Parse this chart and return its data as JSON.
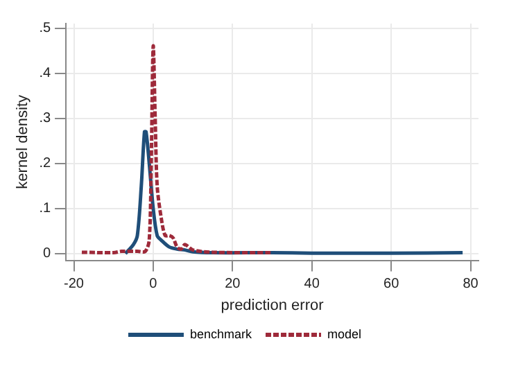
{
  "chart_data": {
    "type": "line",
    "xlabel": "prediction error",
    "ylabel": "kernel density",
    "xlim": [
      -22,
      82
    ],
    "xticks": [
      -20,
      0,
      20,
      40,
      60,
      80
    ],
    "ylim": [
      -0.015,
      0.51
    ],
    "yticks": [
      {
        "value": 0,
        "label": "0"
      },
      {
        "value": 0.1,
        "label": ".1"
      },
      {
        "value": 0.2,
        "label": ".2"
      },
      {
        "value": 0.3,
        "label": ".3"
      },
      {
        "value": 0.4,
        "label": ".4"
      },
      {
        "value": 0.5,
        "label": ".5"
      }
    ],
    "grid": true,
    "legend": "bottom",
    "marker": "none",
    "series": [
      {
        "name": "benchmark",
        "color": "#1f4e79",
        "line_style": "solid",
        "x": [
          -7,
          -5,
          -4,
          -3,
          -2.2,
          -1.8,
          -1,
          0,
          1,
          2,
          4,
          6,
          8,
          10,
          15,
          30,
          40,
          60,
          78
        ],
        "values": [
          0,
          0.02,
          0.04,
          0.15,
          0.27,
          0.27,
          0.2,
          0.1,
          0.04,
          0.03,
          0.015,
          0.01,
          0.008,
          0.004,
          0.002,
          0.002,
          0.001,
          0.001,
          0.002
        ]
      },
      {
        "name": "model",
        "color": "#9e2a3a",
        "line_style": "dashed",
        "x": [
          -18,
          -10,
          -8,
          -4,
          -2,
          -1,
          -0.5,
          0,
          0.5,
          1,
          2,
          3,
          4,
          5,
          6,
          7,
          8,
          10,
          15,
          30
        ],
        "values": [
          0.003,
          0.002,
          0.005,
          0.005,
          0.005,
          0.03,
          0.2,
          0.46,
          0.3,
          0.15,
          0.08,
          0.04,
          0.04,
          0.035,
          0.015,
          0.01,
          0.02,
          0.008,
          0.003,
          0.002
        ]
      }
    ]
  }
}
